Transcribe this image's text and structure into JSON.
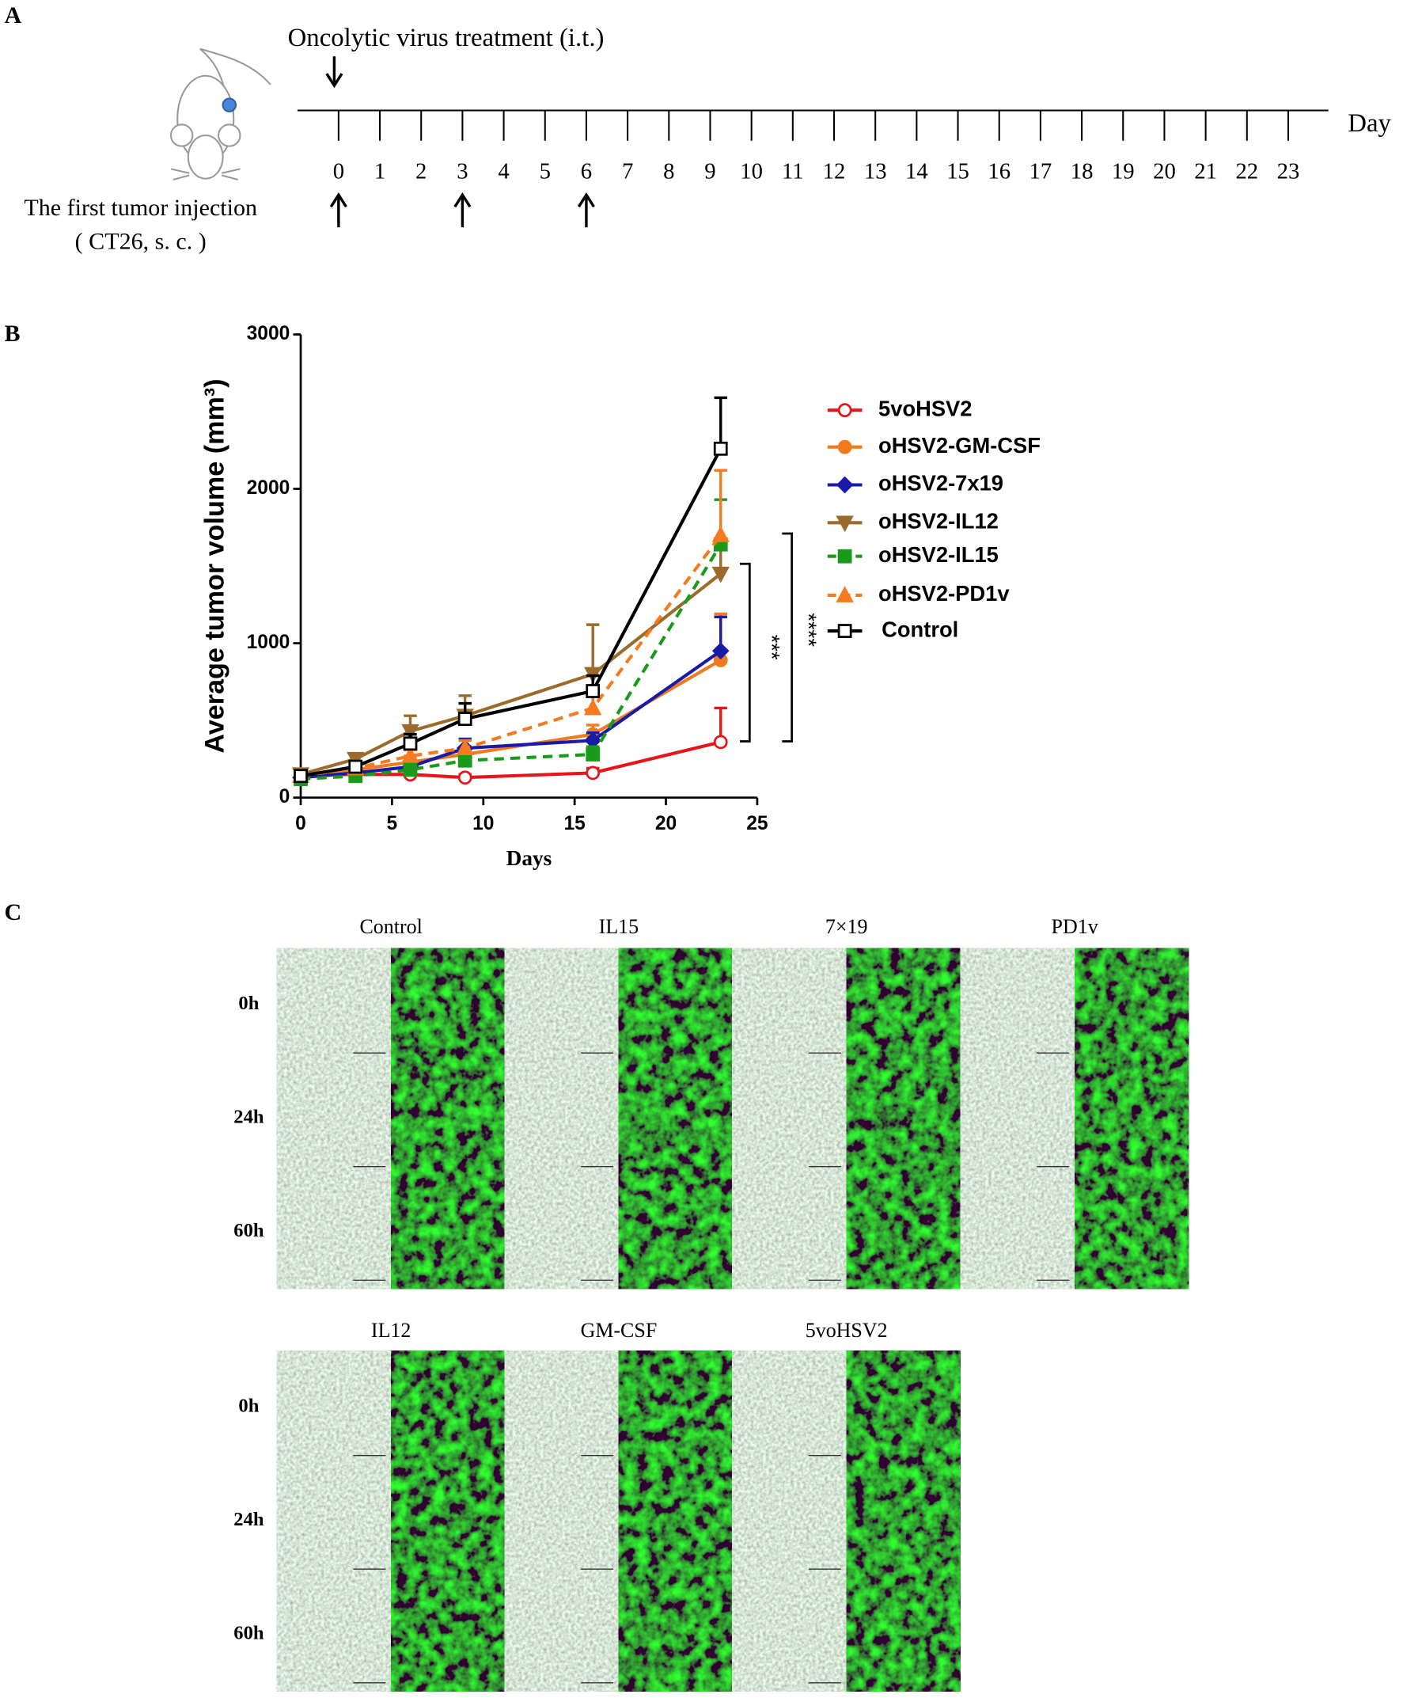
{
  "panel_a": {
    "label": "A",
    "title": "Oncolytic virus treatment (i.t.)",
    "axis_label": "Day",
    "days": [
      0,
      1,
      2,
      3,
      4,
      5,
      6,
      7,
      8,
      9,
      10,
      11,
      12,
      13,
      14,
      15,
      16,
      17,
      18,
      19,
      20,
      21,
      22,
      23
    ],
    "treatment_days": [
      0,
      3,
      6
    ],
    "injection_label": "The first tumor injection",
    "injection_detail": "( CT26, s. c. )"
  },
  "chart_data": {
    "type": "line",
    "panel_label": "B",
    "ylabel": "Average tumor volume  (mm³)",
    "xlabel": "Days",
    "x": [
      0,
      3,
      6,
      9,
      16,
      23
    ],
    "xlim": [
      0,
      25
    ],
    "xticks": [
      0,
      5,
      10,
      15,
      20,
      25
    ],
    "ylim": [
      0,
      3000
    ],
    "yticks": [
      0,
      1000,
      2000,
      3000
    ],
    "legend": "right",
    "series": [
      {
        "name": "5voHSV2",
        "color": "#e8141a",
        "marker": "open-circle",
        "dashed": false,
        "values": [
          150,
          150,
          150,
          130,
          160,
          360
        ],
        "errors": [
          20,
          20,
          20,
          20,
          30,
          220
        ]
      },
      {
        "name": "oHSV2-GM-CSF",
        "color": "#f07a1e",
        "marker": "circle",
        "dashed": false,
        "values": [
          150,
          180,
          230,
          280,
          410,
          890
        ],
        "errors": [
          20,
          30,
          40,
          50,
          60,
          300
        ]
      },
      {
        "name": "oHSV2-7x19",
        "color": "#1a1aa8",
        "marker": "diamond",
        "dashed": false,
        "values": [
          130,
          160,
          200,
          320,
          370,
          950
        ],
        "errors": [
          20,
          30,
          40,
          60,
          50,
          220
        ]
      },
      {
        "name": "oHSV2-IL12",
        "color": "#9a6b2a",
        "marker": "triangle-down",
        "dashed": false,
        "values": [
          150,
          250,
          430,
          530,
          800,
          1450
        ],
        "errors": [
          20,
          30,
          100,
          130,
          320,
          200
        ]
      },
      {
        "name": "oHSV2-IL15",
        "color": "#1a9a1a",
        "marker": "square",
        "dashed": true,
        "values": [
          120,
          140,
          180,
          240,
          280,
          1640
        ],
        "errors": [
          20,
          20,
          30,
          40,
          50,
          290
        ]
      },
      {
        "name": "oHSV2-PD1v",
        "color": "#f57a20",
        "marker": "triangle-up",
        "dashed": true,
        "values": [
          140,
          190,
          270,
          320,
          580,
          1700
        ],
        "errors": [
          20,
          30,
          40,
          50,
          90,
          420
        ]
      },
      {
        "name": "Control",
        "color": "#000000",
        "marker": "open-square",
        "dashed": false,
        "values": [
          140,
          200,
          350,
          510,
          690,
          2260
        ],
        "errors": [
          20,
          30,
          60,
          100,
          100,
          330
        ]
      }
    ],
    "annotations": [
      "***",
      "****"
    ]
  },
  "panel_c": {
    "label": "C",
    "row_labels": [
      "0h",
      "24h",
      "60h"
    ],
    "group1": [
      "Control",
      "IL15",
      "7×19",
      "PD1v"
    ],
    "group2": [
      "IL12",
      "GM-CSF",
      "5voHSV2"
    ]
  }
}
